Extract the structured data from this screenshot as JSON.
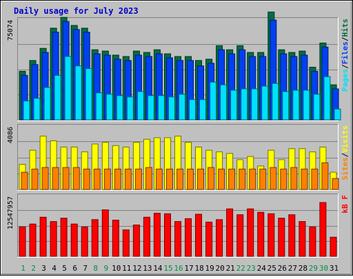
{
  "chart_data": {
    "type": "bar",
    "title": "Daily usage for July 2023",
    "colors": {
      "background": "#c0c0c0",
      "hits": "#006f40",
      "files": "#0040f0",
      "pages": "#00e0ff",
      "visits": "#ffff00",
      "sites": "#ff8000",
      "kbf": "#ff0000",
      "weekend_label": "#009040",
      "weekday_label": "#000000"
    },
    "categories": [
      "1",
      "2",
      "3",
      "4",
      "5",
      "6",
      "7",
      "8",
      "9",
      "10",
      "11",
      "12",
      "13",
      "14",
      "15",
      "16",
      "17",
      "18",
      "19",
      "20",
      "21",
      "22",
      "23",
      "24",
      "25",
      "26",
      "27",
      "28",
      "29",
      "30",
      "31"
    ],
    "weekend_days": [
      "1",
      "2",
      "8",
      "9",
      "15",
      "16",
      "22",
      "23",
      "29",
      "30"
    ],
    "panels": [
      {
        "id": "hits-files-pages",
        "ymax": 75074,
        "ytick_label": "75074",
        "legend": [
          "Pages",
          "/",
          "Files",
          "/",
          "Hits"
        ],
        "series": [
          {
            "name": "Hits",
            "color": "#006f40",
            "values": [
              36000,
              44000,
              53000,
              68000,
              76000,
              70000,
              68000,
              52000,
              51000,
              48000,
              47000,
              51000,
              50000,
              52000,
              49000,
              47000,
              47000,
              44000,
              45000,
              55000,
              52000,
              55000,
              50000,
              50000,
              80000,
              52000,
              50000,
              51000,
              39000,
              57000,
              26000
            ]
          },
          {
            "name": "Files",
            "color": "#0040f0",
            "values": [
              33000,
              41000,
              50000,
              65000,
              73000,
              67000,
              65000,
              49000,
              48000,
              45000,
              44000,
              48000,
              47000,
              49000,
              46000,
              44000,
              44000,
              40000,
              42000,
              52000,
              49000,
              52000,
              47000,
              47000,
              74000,
              49000,
              47000,
              48000,
              36000,
              54000,
              23000
            ]
          },
          {
            "name": "Pages",
            "color": "#00e0ff",
            "values": [
              14000,
              16000,
              24000,
              33000,
              47000,
              40000,
              38000,
              20000,
              19000,
              18000,
              17000,
              21000,
              18000,
              18000,
              17000,
              19000,
              15000,
              15000,
              28000,
              26000,
              22000,
              23000,
              23000,
              25000,
              27000,
              21000,
              22000,
              22000,
              19000,
              32000,
              8000
            ]
          }
        ]
      },
      {
        "id": "visits-sites",
        "ymax": 4086,
        "ytick_label": "4086",
        "legend": [
          "Sites",
          "/",
          "Visits"
        ],
        "series": [
          {
            "name": "Visits",
            "color": "#ffff00",
            "values": [
              1600,
              2500,
              3400,
              3100,
              2700,
              2700,
              2400,
              2900,
              3000,
              2800,
              2700,
              3000,
              3200,
              3300,
              3300,
              3400,
              3000,
              2700,
              2500,
              2400,
              2300,
              1900,
              2100,
              1500,
              2500,
              1900,
              2600,
              2600,
              2400,
              2700,
              1100
            ]
          },
          {
            "name": "Sites",
            "color": "#ff8000",
            "values": [
              1100,
              1300,
              1400,
              1400,
              1400,
              1400,
              1300,
              1300,
              1300,
              1300,
              1300,
              1300,
              1400,
              1300,
              1300,
              1300,
              1300,
              1300,
              1400,
              1300,
              1300,
              1300,
              1300,
              1300,
              1400,
              1300,
              1400,
              1300,
              1300,
              1700,
              700
            ]
          }
        ]
      },
      {
        "id": "kbf",
        "ymax": 12547957,
        "ytick_label": "12547957",
        "legend": [
          "kB F"
        ],
        "series": [
          {
            "name": "kB F",
            "color": "#ff0000",
            "values": [
              6000000,
              6600000,
              8000000,
              7100000,
              7800000,
              6600000,
              6000000,
              7500000,
              9500000,
              7400000,
              5400000,
              6400000,
              8000000,
              8800000,
              8700000,
              7100000,
              7700000,
              8600000,
              7000000,
              7500000,
              9700000,
              8500000,
              9700000,
              9000000,
              8700000,
              7800000,
              8500000,
              7100000,
              6000000,
              11000000,
              3900000
            ]
          }
        ]
      }
    ]
  }
}
